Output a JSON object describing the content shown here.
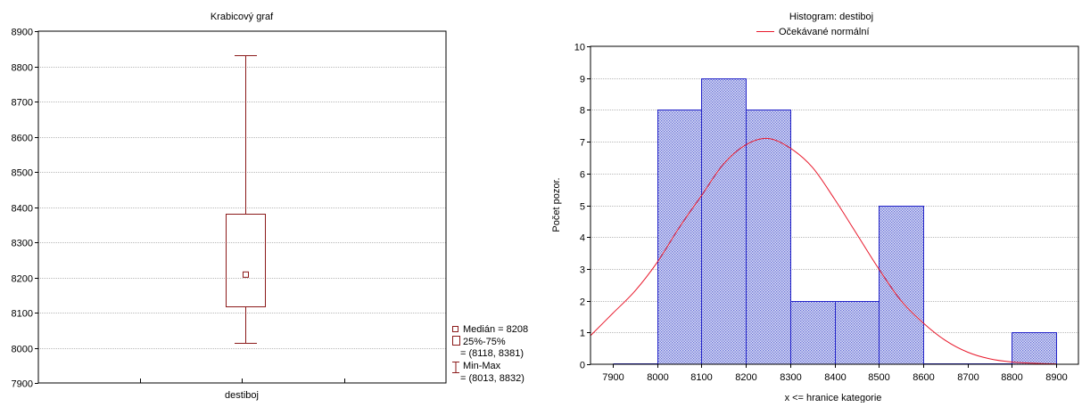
{
  "colors": {
    "box_stroke": "#8b1a1a",
    "hist_stroke": "#2323c8",
    "hist_fill": "#c9cdf0",
    "normal_curve": "#e8192c",
    "grid": "#b8b8b8",
    "frame": "#000000"
  },
  "chart_data": [
    {
      "type": "box",
      "title": "Krabicový graf",
      "categories": [
        "destiboj"
      ],
      "ylim": [
        7900,
        8900
      ],
      "yticks": [
        7900,
        8000,
        8100,
        8200,
        8300,
        8400,
        8500,
        8600,
        8700,
        8800,
        8900
      ],
      "grid": true,
      "median": 8208,
      "q1": 8118,
      "q3": 8381,
      "min": 8013,
      "max": 8832,
      "legend_position": "right",
      "legend": {
        "median_label": "Medián = 8208",
        "box_label_line1": "25%-75%",
        "box_label_line2": "= (8118, 8381)",
        "whisker_label_line1": "Min-Max",
        "whisker_label_line2": "= (8013, 8832)"
      }
    },
    {
      "type": "bar",
      "title": "Histogram: destiboj",
      "xlabel": "x <= hranice kategorie",
      "ylabel": "Počet pozor.",
      "xlim": [
        7850,
        8950
      ],
      "ylim": [
        0,
        10
      ],
      "xticks": [
        7900,
        8000,
        8100,
        8200,
        8300,
        8400,
        8500,
        8600,
        8700,
        8800,
        8900
      ],
      "yticks": [
        0,
        1,
        2,
        3,
        4,
        5,
        6,
        7,
        8,
        9,
        10
      ],
      "grid": true,
      "legend_position": "top",
      "bins": [
        {
          "from": 7900,
          "to": 8000,
          "count": 0
        },
        {
          "from": 8000,
          "to": 8100,
          "count": 8
        },
        {
          "from": 8100,
          "to": 8200,
          "count": 9
        },
        {
          "from": 8200,
          "to": 8300,
          "count": 8
        },
        {
          "from": 8300,
          "to": 8400,
          "count": 2
        },
        {
          "from": 8400,
          "to": 8500,
          "count": 2
        },
        {
          "from": 8500,
          "to": 8600,
          "count": 5
        },
        {
          "from": 8600,
          "to": 8700,
          "count": 0
        },
        {
          "from": 8700,
          "to": 8800,
          "count": 0
        },
        {
          "from": 8800,
          "to": 8900,
          "count": 1
        }
      ],
      "series": [
        {
          "name": "Očekávané normální",
          "x": [
            7850,
            7900,
            7950,
            8000,
            8050,
            8100,
            8150,
            8200,
            8250,
            8300,
            8350,
            8400,
            8450,
            8500,
            8550,
            8600,
            8650,
            8700,
            8750,
            8800,
            8850,
            8900
          ],
          "y": [
            0.9,
            1.6,
            2.3,
            3.2,
            4.3,
            5.3,
            6.3,
            6.9,
            7.1,
            6.8,
            6.2,
            5.2,
            4.1,
            3.0,
            2.0,
            1.3,
            0.75,
            0.38,
            0.17,
            0.07,
            0.03,
            0.01
          ]
        }
      ]
    }
  ]
}
